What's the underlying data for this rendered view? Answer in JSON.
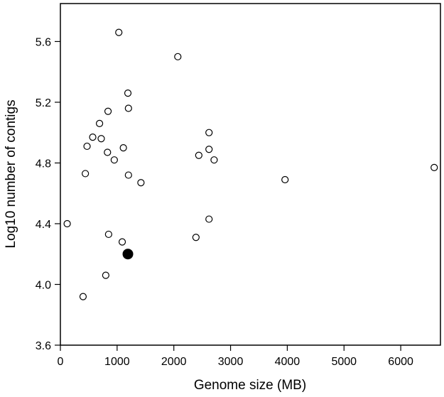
{
  "chart_data": {
    "type": "scatter",
    "title": "",
    "xlabel": "Genome size (MB)",
    "ylabel": "Log10 number of contigs",
    "xlim": [
      0,
      6700
    ],
    "ylim": [
      3.6,
      5.85
    ],
    "grid": false,
    "legend": "none",
    "xticks": [
      0,
      1000,
      2000,
      3000,
      4000,
      5000,
      6000
    ],
    "xtick_labels": [
      "0",
      "1000",
      "2000",
      "3000",
      "4000",
      "5000",
      "6000"
    ],
    "yticks": [
      3.6,
      4.0,
      4.4,
      4.8,
      5.2,
      5.6
    ],
    "ytick_labels": [
      "3.6",
      "4.0",
      "4.4",
      "4.8",
      "5.2",
      "5.6"
    ],
    "series": [
      {
        "marker": "open-circle",
        "color": "#000000",
        "points": [
          {
            "x": 1030,
            "y": 5.66
          },
          {
            "x": 2070,
            "y": 5.5
          },
          {
            "x": 1190,
            "y": 5.26
          },
          {
            "x": 1200,
            "y": 5.16
          },
          {
            "x": 840,
            "y": 5.14
          },
          {
            "x": 690,
            "y": 5.06
          },
          {
            "x": 2620,
            "y": 5.0
          },
          {
            "x": 570,
            "y": 4.97
          },
          {
            "x": 720,
            "y": 4.96
          },
          {
            "x": 470,
            "y": 4.91
          },
          {
            "x": 1110,
            "y": 4.9
          },
          {
            "x": 2620,
            "y": 4.89
          },
          {
            "x": 830,
            "y": 4.87
          },
          {
            "x": 2440,
            "y": 4.85
          },
          {
            "x": 950,
            "y": 4.82
          },
          {
            "x": 2710,
            "y": 4.82
          },
          {
            "x": 6590,
            "y": 4.77
          },
          {
            "x": 440,
            "y": 4.73
          },
          {
            "x": 1200,
            "y": 4.72
          },
          {
            "x": 3960,
            "y": 4.69
          },
          {
            "x": 1420,
            "y": 4.67
          },
          {
            "x": 2620,
            "y": 4.43
          },
          {
            "x": 120,
            "y": 4.4
          },
          {
            "x": 850,
            "y": 4.33
          },
          {
            "x": 2390,
            "y": 4.31
          },
          {
            "x": 1090,
            "y": 4.28
          },
          {
            "x": 800,
            "y": 4.06
          },
          {
            "x": 400,
            "y": 3.92
          }
        ]
      },
      {
        "marker": "filled-circle",
        "color": "#000000",
        "points": [
          {
            "x": 1190,
            "y": 4.2
          }
        ]
      }
    ]
  }
}
